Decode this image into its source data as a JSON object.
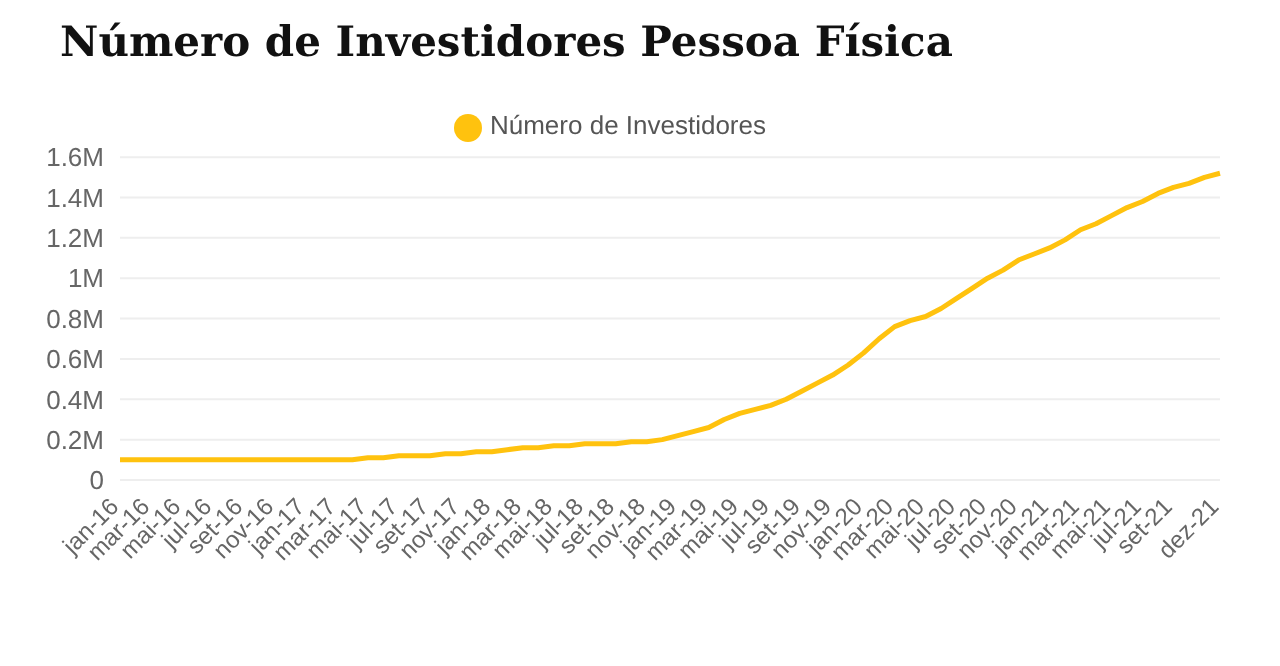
{
  "chart_data": {
    "type": "line",
    "title": "Número de Investidores Pessoa Física",
    "categories": [
      "jan-16",
      null,
      "mar-16",
      null,
      "mai-16",
      null,
      "jul-16",
      null,
      "set-16",
      null,
      "nov-16",
      null,
      "jan-17",
      null,
      "mar-17",
      null,
      "mai-17",
      null,
      "jul-17",
      null,
      "set-17",
      null,
      "nov-17",
      null,
      "jan-18",
      null,
      "mar-18",
      null,
      "mai-18",
      null,
      "jul-18",
      null,
      "set-18",
      null,
      "nov-18",
      null,
      "jan-19",
      null,
      "mar-19",
      null,
      "mai-19",
      null,
      "jul-19",
      null,
      "set-19",
      null,
      "nov-19",
      null,
      "jan-20",
      null,
      "mar-20",
      null,
      "mai-20",
      null,
      "jul-20",
      null,
      "set-20",
      null,
      "nov-20",
      null,
      "jan-21",
      null,
      "mar-21",
      null,
      "mai-21",
      null,
      "jul-21",
      null,
      "set-21",
      null,
      null,
      "dez-21"
    ],
    "series": [
      {
        "name": "Número de Investidores",
        "color": "#ffc20e",
        "values": [
          0.1,
          0.1,
          0.1,
          0.1,
          0.1,
          0.1,
          0.1,
          0.1,
          0.1,
          0.1,
          0.1,
          0.1,
          0.1,
          0.1,
          0.1,
          0.1,
          0.11,
          0.11,
          0.12,
          0.12,
          0.12,
          0.13,
          0.13,
          0.14,
          0.14,
          0.15,
          0.16,
          0.16,
          0.17,
          0.17,
          0.18,
          0.18,
          0.18,
          0.19,
          0.19,
          0.2,
          0.22,
          0.24,
          0.26,
          0.3,
          0.33,
          0.35,
          0.37,
          0.4,
          0.44,
          0.48,
          0.52,
          0.57,
          0.63,
          0.7,
          0.76,
          0.79,
          0.81,
          0.85,
          0.9,
          0.95,
          1.0,
          1.04,
          1.09,
          1.12,
          1.15,
          1.19,
          1.24,
          1.27,
          1.31,
          1.35,
          1.38,
          1.42,
          1.45,
          1.47,
          1.5,
          1.52
        ]
      }
    ],
    "ylim": [
      0,
      1.6
    ],
    "yticks": [
      {
        "value": 0,
        "label": "0"
      },
      {
        "value": 0.2,
        "label": "0.2M"
      },
      {
        "value": 0.4,
        "label": "0.4M"
      },
      {
        "value": 0.6,
        "label": "0.6M"
      },
      {
        "value": 0.8,
        "label": "0.8M"
      },
      {
        "value": 1,
        "label": "1M"
      },
      {
        "value": 1.2,
        "label": "1.2M"
      },
      {
        "value": 1.4,
        "label": "1.4M"
      },
      {
        "value": 1.6,
        "label": "1.6M"
      }
    ],
    "grid": "y",
    "legend": "top",
    "marker": "none",
    "line_style": "solid"
  }
}
